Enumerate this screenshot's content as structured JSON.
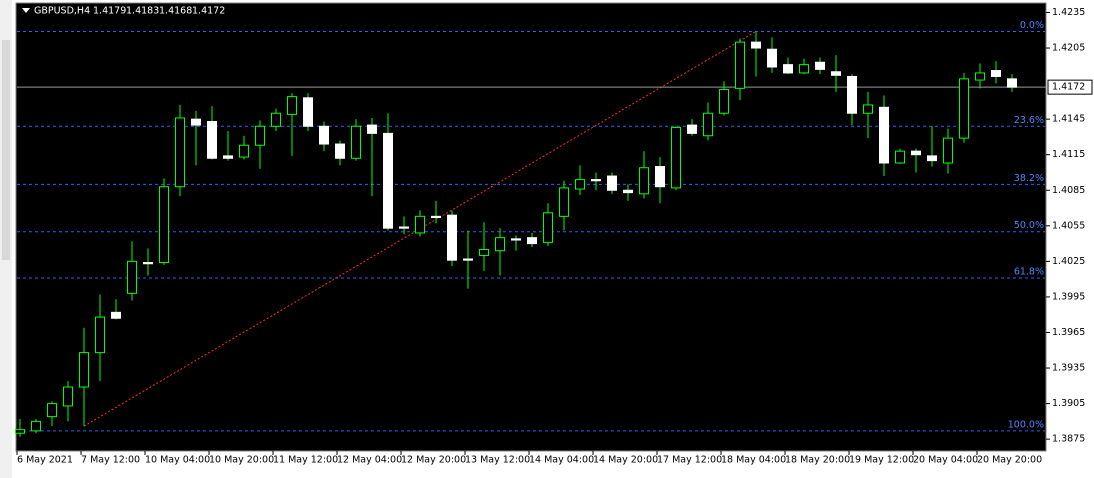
{
  "chart_data": {
    "type": "candlestick",
    "symbol_label": "GBPUSD,H4",
    "categories": [
      "6 May 2021",
      null,
      null,
      null,
      "7 May 12:00",
      null,
      null,
      null,
      "10 May 04:00",
      null,
      null,
      null,
      "10 May 20:00",
      null,
      null,
      null,
      "11 May 12:00",
      null,
      null,
      null,
      "12 May 04:00",
      null,
      null,
      null,
      "12 May 20:00",
      null,
      null,
      null,
      "13 May 12:00",
      null,
      null,
      null,
      "14 May 04:00",
      null,
      null,
      null,
      "14 May 20:00",
      null,
      null,
      null,
      "17 May 12:00",
      null,
      null,
      null,
      "18 May 04:00",
      null,
      null,
      null,
      "18 May 20:00",
      null,
      null,
      null,
      "19 May 12:00",
      null,
      null,
      null,
      "20 May 04:00",
      null,
      null,
      null,
      "20 May 20:00",
      null,
      null
    ],
    "open": [
      1.388,
      1.3882,
      1.3894,
      1.3903,
      1.3919,
      1.3948,
      1.3982,
      1.3998,
      1.4024,
      1.4024,
      1.4088,
      1.4145,
      1.4143,
      1.4114,
      1.4113,
      1.4123,
      1.4139,
      1.4149,
      1.4163,
      1.4139,
      1.4124,
      1.4112,
      1.414,
      1.4133,
      1.4054,
      1.4049,
      1.4063,
      1.4064,
      1.4027,
      1.403,
      1.4034,
      1.4044,
      1.4045,
      1.4041,
      1.4063,
      1.4086,
      1.4094,
      1.4097,
      1.4085,
      1.4082,
      1.4105,
      1.4087,
      1.414,
      1.4131,
      1.415,
      1.4171,
      1.421,
      1.4204,
      1.4191,
      1.4184,
      1.4193,
      1.4185,
      1.4181,
      1.415,
      1.4155,
      1.4108,
      1.4118,
      1.4114,
      1.4108,
      1.4129,
      1.4178,
      1.4186,
      1.4179
    ],
    "high": [
      1.3892,
      1.3892,
      1.3907,
      1.3924,
      1.3969,
      1.3997,
      1.3993,
      1.4042,
      1.4036,
      1.4095,
      1.4157,
      1.4152,
      1.4156,
      1.4135,
      1.4131,
      1.4144,
      1.4154,
      1.4167,
      1.4167,
      1.4143,
      1.4127,
      1.4145,
      1.4146,
      1.415,
      1.4063,
      1.4068,
      1.4076,
      1.4068,
      1.4051,
      1.4058,
      1.4053,
      1.4047,
      1.4049,
      1.4074,
      1.4093,
      1.4106,
      1.41,
      1.41,
      1.409,
      1.4118,
      1.4113,
      1.4139,
      1.4145,
      1.4159,
      1.4177,
      1.4213,
      1.4219,
      1.4214,
      1.4197,
      1.4196,
      1.4197,
      1.4199,
      1.4183,
      1.4168,
      1.4165,
      1.412,
      1.412,
      1.4139,
      1.4137,
      1.4184,
      1.4192,
      1.4194,
      1.4183
    ],
    "low": [
      1.3877,
      1.388,
      1.3886,
      1.389,
      1.3886,
      1.3924,
      1.3976,
      1.3992,
      1.4013,
      1.4022,
      1.408,
      1.4106,
      1.4111,
      1.411,
      1.4111,
      1.4103,
      1.4135,
      1.4114,
      1.4135,
      1.4118,
      1.4106,
      1.411,
      1.408,
      1.4051,
      1.4048,
      1.4046,
      1.4057,
      1.4021,
      1.4002,
      1.4017,
      1.4013,
      1.4034,
      1.4037,
      1.4038,
      1.4051,
      1.4081,
      1.4085,
      1.4082,
      1.4076,
      1.4078,
      1.4074,
      1.4085,
      1.4131,
      1.4127,
      1.4148,
      1.4161,
      1.4181,
      1.4184,
      1.4183,
      1.4183,
      1.4183,
      1.4168,
      1.414,
      1.4129,
      1.4097,
      1.4107,
      1.41,
      1.4105,
      1.4099,
      1.4125,
      1.4171,
      1.4175,
      1.4168
    ],
    "close": [
      1.3883,
      1.389,
      1.3905,
      1.3919,
      1.3948,
      1.3978,
      1.3977,
      1.4025,
      1.4023,
      1.4088,
      1.4146,
      1.414,
      1.4112,
      1.4112,
      1.4123,
      1.4139,
      1.415,
      1.4164,
      1.4139,
      1.4124,
      1.4112,
      1.4139,
      1.4133,
      1.4053,
      1.4053,
      1.4063,
      1.4062,
      1.4026,
      1.4026,
      1.4035,
      1.4045,
      1.4043,
      1.404,
      1.4066,
      1.4087,
      1.4094,
      1.4093,
      1.4085,
      1.4083,
      1.4104,
      1.4088,
      1.4138,
      1.4133,
      1.415,
      1.417,
      1.421,
      1.4205,
      1.4189,
      1.4184,
      1.4191,
      1.4187,
      1.4182,
      1.415,
      1.4157,
      1.4108,
      1.4118,
      1.4115,
      1.411,
      1.4129,
      1.4179,
      1.4184,
      1.4181,
      1.4172
    ],
    "bull_color": "#00ff00",
    "bear_color": "#ffffff",
    "ylim": [
      1.3865,
      1.4243
    ],
    "yticks": [
      1.4235,
      1.4205,
      1.4145,
      1.4115,
      1.4085,
      1.4055,
      1.4025,
      1.3995,
      1.3965,
      1.3935,
      1.3905,
      1.3875
    ],
    "fibo": [
      {
        "value": 1.4219,
        "label": "0.0%"
      },
      {
        "value": 1.4139,
        "label": "23.6%"
      },
      {
        "value": 1.409,
        "label": "38.2%"
      },
      {
        "value": 1.405,
        "label": "50.0%"
      },
      {
        "value": 1.4011,
        "label": "61.8%"
      },
      {
        "value": 1.3882,
        "label": "100.0%"
      }
    ],
    "fibo_color": "#2f5bff",
    "trendline": {
      "from_index": 4,
      "to_index": 46,
      "values": [
        1.3886,
        1.4219
      ],
      "color": "#ff2a2a"
    }
  }
}
